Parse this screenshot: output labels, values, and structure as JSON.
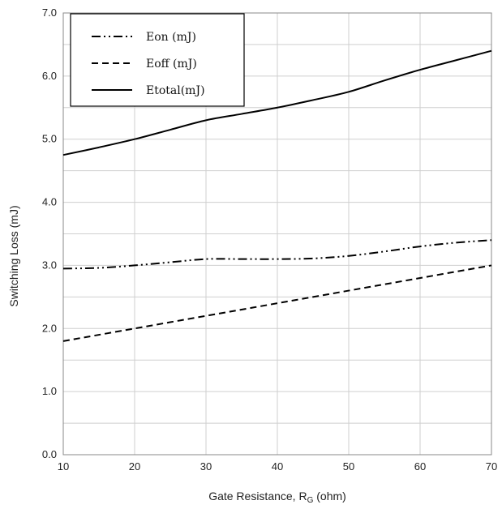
{
  "chart_data": {
    "type": "line",
    "xlabel": "Gate Resistance, R",
    "xlabel_sub": "G",
    "xlabel_suffix": " (ohm)",
    "ylabel": "Switching Loss (mJ)",
    "xlim": [
      10,
      70
    ],
    "ylim": [
      0,
      7
    ],
    "x_ticks": [
      "10",
      "20",
      "30",
      "40",
      "50",
      "60",
      "70"
    ],
    "y_ticks": [
      "0.0",
      "1.0",
      "2.0",
      "3.0",
      "4.0",
      "5.0",
      "6.0",
      "7.0"
    ],
    "grid": true,
    "legend_position": "top-left",
    "series": [
      {
        "name": "Eon (mJ)",
        "style": "dash-dot-dot",
        "color": "#000000",
        "x": [
          10,
          15,
          20,
          25,
          30,
          35,
          40,
          45,
          50,
          55,
          60,
          65,
          70
        ],
        "y": [
          2.95,
          2.96,
          3.0,
          3.05,
          3.1,
          3.1,
          3.1,
          3.11,
          3.15,
          3.22,
          3.3,
          3.36,
          3.4
        ]
      },
      {
        "name": "Eoff (mJ)",
        "style": "dashed",
        "color": "#000000",
        "x": [
          10,
          20,
          30,
          40,
          50,
          60,
          70
        ],
        "y": [
          1.8,
          2.0,
          2.2,
          2.4,
          2.6,
          2.8,
          3.0
        ]
      },
      {
        "name": "Etotal(mJ)",
        "style": "solid",
        "color": "#000000",
        "x": [
          10,
          15,
          20,
          25,
          30,
          35,
          40,
          45,
          50,
          55,
          60,
          65,
          70
        ],
        "y": [
          4.75,
          4.87,
          5.0,
          5.15,
          5.3,
          5.4,
          5.5,
          5.62,
          5.75,
          5.93,
          6.1,
          6.25,
          6.4
        ]
      }
    ]
  }
}
